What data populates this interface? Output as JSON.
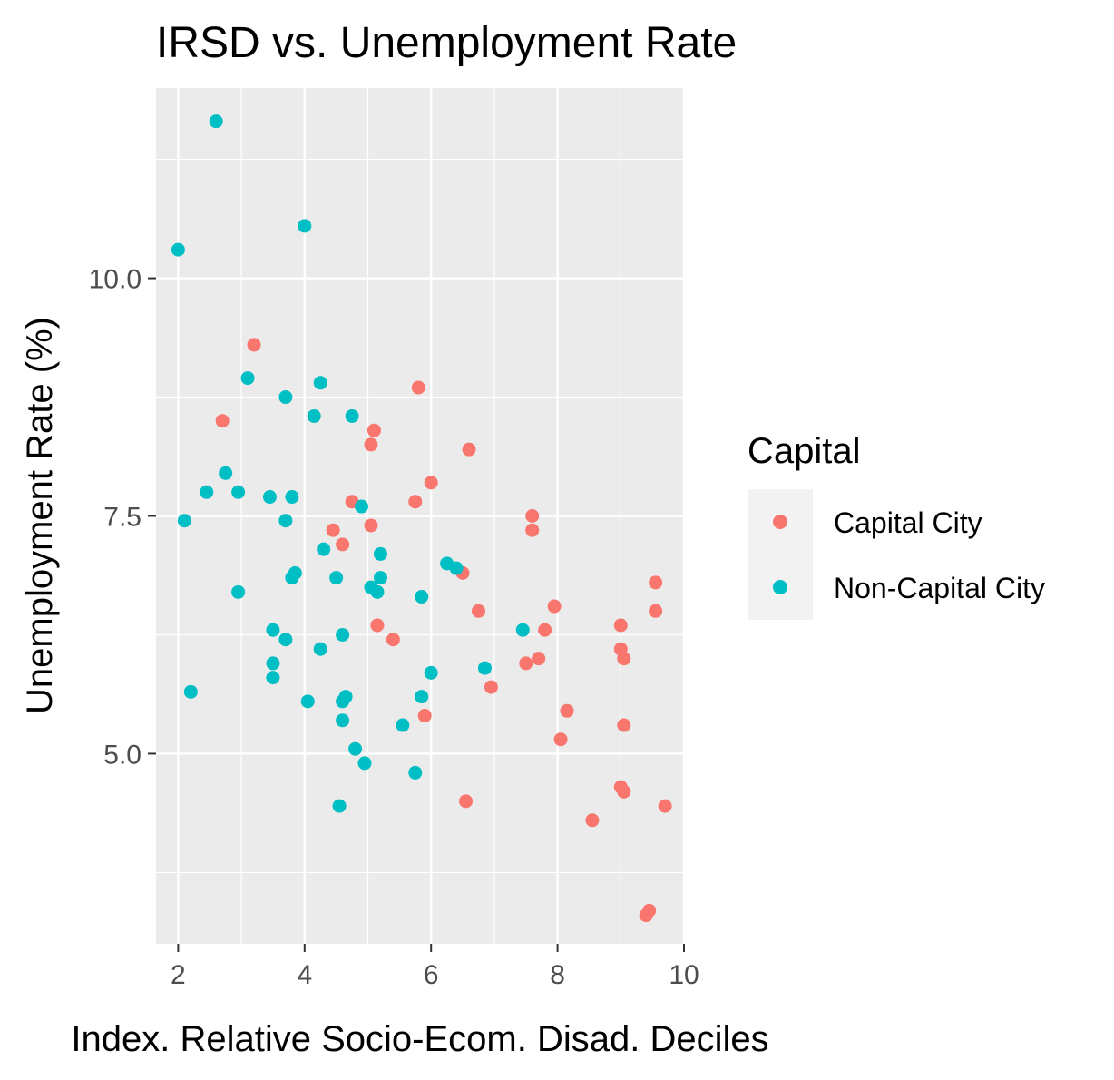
{
  "chart_data": {
    "type": "scatter",
    "title": "IRSD vs. Unemployment Rate",
    "xlabel": "Index. Relative Socio-Ecom. Disad. Deciles",
    "ylabel": "Unemployment Rate (%)",
    "xlim": [
      1.65,
      10.0
    ],
    "ylim": [
      3.0,
      12.0
    ],
    "x_ticks": [
      2,
      4,
      6,
      8,
      10
    ],
    "x_tick_labels": [
      "2",
      "4",
      "6",
      "8",
      "10"
    ],
    "y_ticks": [
      5.0,
      7.5,
      10.0
    ],
    "y_tick_labels": [
      "5.0",
      "7.5",
      "10.0"
    ],
    "grid": true,
    "legend": {
      "title": "Capital",
      "position": "right",
      "entries": [
        "Capital City",
        "Non-Capital City"
      ]
    },
    "colors": {
      "Capital City": "#F8766D",
      "Non-Capital City": "#00BFC4",
      "panel": "#EBEBEB",
      "grid": "#FFFFFF"
    },
    "series": [
      {
        "name": "Capital City",
        "points": [
          [
            3.2,
            9.3
          ],
          [
            2.7,
            8.5
          ],
          [
            5.8,
            8.85
          ],
          [
            5.1,
            8.4
          ],
          [
            5.05,
            8.25
          ],
          [
            6.6,
            8.2
          ],
          [
            6.0,
            7.85
          ],
          [
            4.75,
            7.65
          ],
          [
            5.75,
            7.65
          ],
          [
            7.6,
            7.5
          ],
          [
            5.05,
            7.4
          ],
          [
            7.6,
            7.35
          ],
          [
            4.45,
            7.35
          ],
          [
            4.6,
            7.2
          ],
          [
            6.5,
            6.9
          ],
          [
            9.55,
            6.8
          ],
          [
            7.95,
            6.55
          ],
          [
            6.75,
            6.5
          ],
          [
            9.55,
            6.5
          ],
          [
            9.0,
            6.35
          ],
          [
            5.15,
            6.35
          ],
          [
            7.8,
            6.3
          ],
          [
            5.4,
            6.2
          ],
          [
            9.0,
            6.1
          ],
          [
            9.05,
            6.0
          ],
          [
            7.7,
            6.0
          ],
          [
            7.5,
            5.95
          ],
          [
            6.95,
            5.7
          ],
          [
            8.15,
            5.45
          ],
          [
            5.9,
            5.4
          ],
          [
            9.05,
            5.3
          ],
          [
            8.05,
            5.15
          ],
          [
            9.0,
            4.65
          ],
          [
            9.05,
            4.6
          ],
          [
            6.55,
            4.5
          ],
          [
            9.7,
            4.45
          ],
          [
            8.55,
            4.3
          ],
          [
            9.45,
            3.35
          ],
          [
            9.4,
            3.3
          ]
        ]
      },
      {
        "name": "Non-Capital City",
        "points": [
          [
            2.6,
            11.65
          ],
          [
            4.0,
            10.55
          ],
          [
            2.0,
            10.3
          ],
          [
            3.1,
            8.95
          ],
          [
            4.25,
            8.9
          ],
          [
            3.7,
            8.75
          ],
          [
            4.75,
            8.55
          ],
          [
            4.15,
            8.55
          ],
          [
            2.75,
            7.95
          ],
          [
            2.45,
            7.75
          ],
          [
            2.95,
            7.75
          ],
          [
            3.8,
            7.7
          ],
          [
            3.45,
            7.7
          ],
          [
            4.9,
            7.6
          ],
          [
            3.7,
            7.45
          ],
          [
            2.1,
            7.45
          ],
          [
            4.3,
            7.15
          ],
          [
            5.2,
            7.1
          ],
          [
            6.25,
            7.0
          ],
          [
            6.4,
            6.95
          ],
          [
            3.85,
            6.9
          ],
          [
            3.8,
            6.85
          ],
          [
            4.5,
            6.85
          ],
          [
            5.2,
            6.85
          ],
          [
            5.05,
            6.75
          ],
          [
            5.15,
            6.7
          ],
          [
            2.95,
            6.7
          ],
          [
            5.85,
            6.65
          ],
          [
            3.5,
            6.3
          ],
          [
            7.45,
            6.3
          ],
          [
            4.6,
            6.25
          ],
          [
            3.7,
            6.2
          ],
          [
            4.25,
            6.1
          ],
          [
            3.5,
            5.95
          ],
          [
            6.85,
            5.9
          ],
          [
            6.0,
            5.85
          ],
          [
            3.5,
            5.8
          ],
          [
            2.2,
            5.65
          ],
          [
            4.65,
            5.6
          ],
          [
            5.85,
            5.6
          ],
          [
            4.05,
            5.55
          ],
          [
            4.6,
            5.55
          ],
          [
            4.6,
            5.35
          ],
          [
            5.55,
            5.3
          ],
          [
            4.8,
            5.05
          ],
          [
            4.95,
            4.9
          ],
          [
            5.75,
            4.8
          ],
          [
            4.55,
            4.45
          ]
        ]
      }
    ]
  }
}
